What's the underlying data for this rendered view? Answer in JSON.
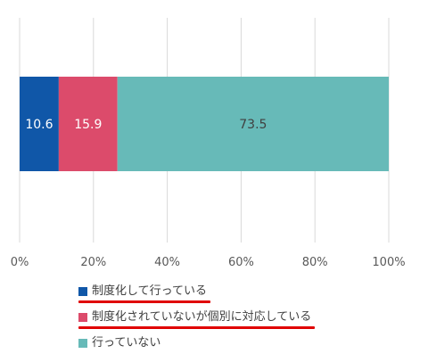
{
  "chart_data": {
    "type": "bar",
    "orientation": "horizontal",
    "stacked": true,
    "x_ticks": [
      "0%",
      "20%",
      "40%",
      "60%",
      "80%",
      "100%"
    ],
    "xlim": [
      0,
      100
    ],
    "grid": "vertical",
    "legend_position": "bottom",
    "series": [
      {
        "name": "制度化して行っている",
        "values": [
          10.6
        ],
        "labels": [
          "10.6"
        ],
        "color": "#1057a8",
        "label_color": "#ffffff",
        "underlined": true
      },
      {
        "name": "制度化されていないが個別に対応している",
        "values": [
          15.9
        ],
        "labels": [
          "15.9"
        ],
        "color": "#dc4b6b",
        "label_color": "#ffffff",
        "underlined": true
      },
      {
        "name": "行っていない",
        "values": [
          73.5
        ],
        "labels": [
          "73.5"
        ],
        "color": "#67bab8",
        "label_color": "#404040",
        "underlined": false
      }
    ]
  },
  "colors": {
    "gridline": "#d9d9d9",
    "axis_text": "#595959",
    "underline": "#e00000"
  }
}
